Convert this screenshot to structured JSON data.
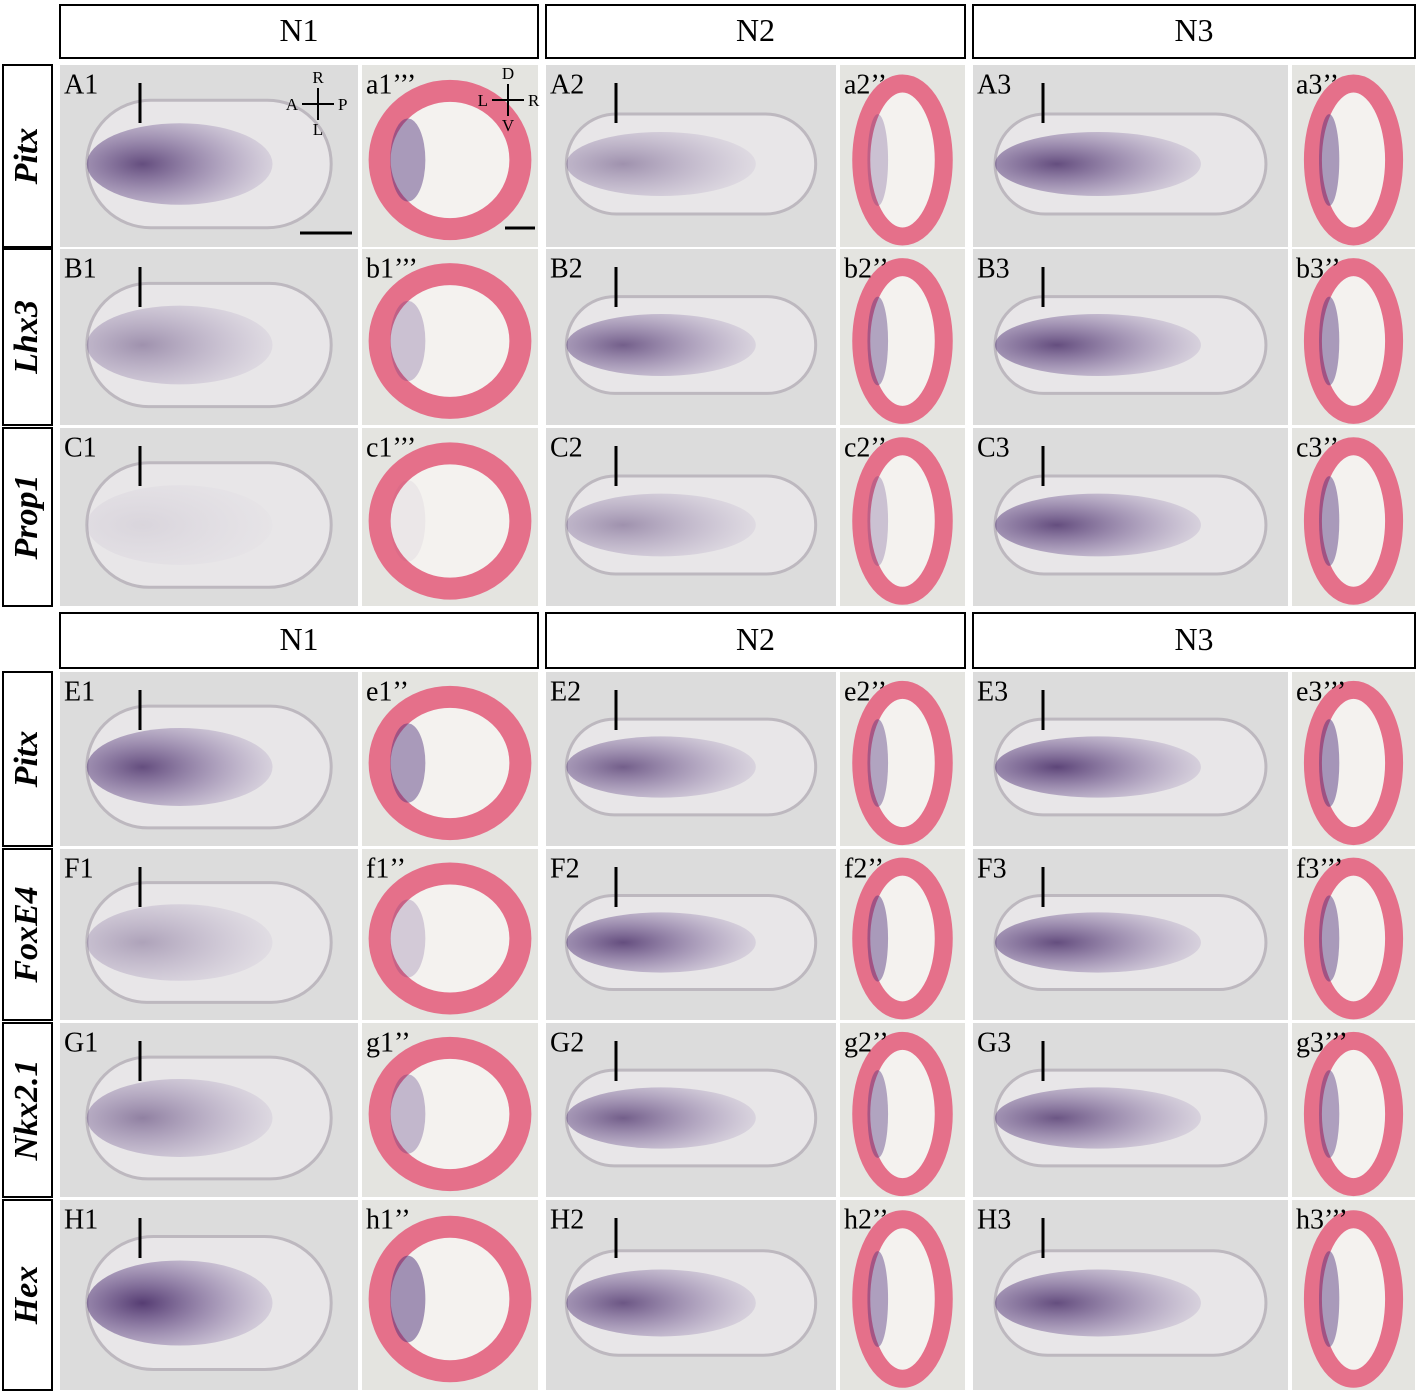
{
  "headers": {
    "top": [
      "N1",
      "N2",
      "N3"
    ],
    "bottom": [
      "N1",
      "N2",
      "N3"
    ]
  },
  "blocks": [
    {
      "rows": [
        {
          "gene": "Pitx",
          "panels": [
            "A1",
            "a1’’’",
            "A2",
            "a2’’",
            "A3",
            "a3’’"
          ]
        },
        {
          "gene": "Lhx3",
          "panels": [
            "B1",
            "b1’’’",
            "B2",
            "b2’’",
            "B3",
            "b3’’"
          ]
        },
        {
          "gene": "Prop1",
          "panels": [
            "C1",
            "c1’’’",
            "C2",
            "c2’’",
            "C3",
            "c3’’"
          ]
        }
      ]
    },
    {
      "rows": [
        {
          "gene": "Pitx",
          "panels": [
            "E1",
            "e1’’",
            "E2",
            "e2’’",
            "E3",
            "e3’’’"
          ]
        },
        {
          "gene": "FoxE4",
          "panels": [
            "F1",
            "f1’’",
            "F2",
            "f2’’",
            "F3",
            "f3’’’"
          ]
        },
        {
          "gene": "Nkx2.1",
          "panels": [
            "G1",
            "g1’’",
            "G2",
            "g2’’",
            "G3",
            "g3’’’"
          ]
        },
        {
          "gene": "Hex",
          "panels": [
            "H1",
            "h1’’",
            "H2",
            "h2’’",
            "H3",
            "h3’’’"
          ]
        }
      ]
    }
  ],
  "compass": {
    "whole": {
      "top": "R",
      "left": "A",
      "right": "P",
      "bottom": "L"
    },
    "section": {
      "top": "D",
      "left": "L",
      "right": "R",
      "bottom": "V"
    }
  }
}
